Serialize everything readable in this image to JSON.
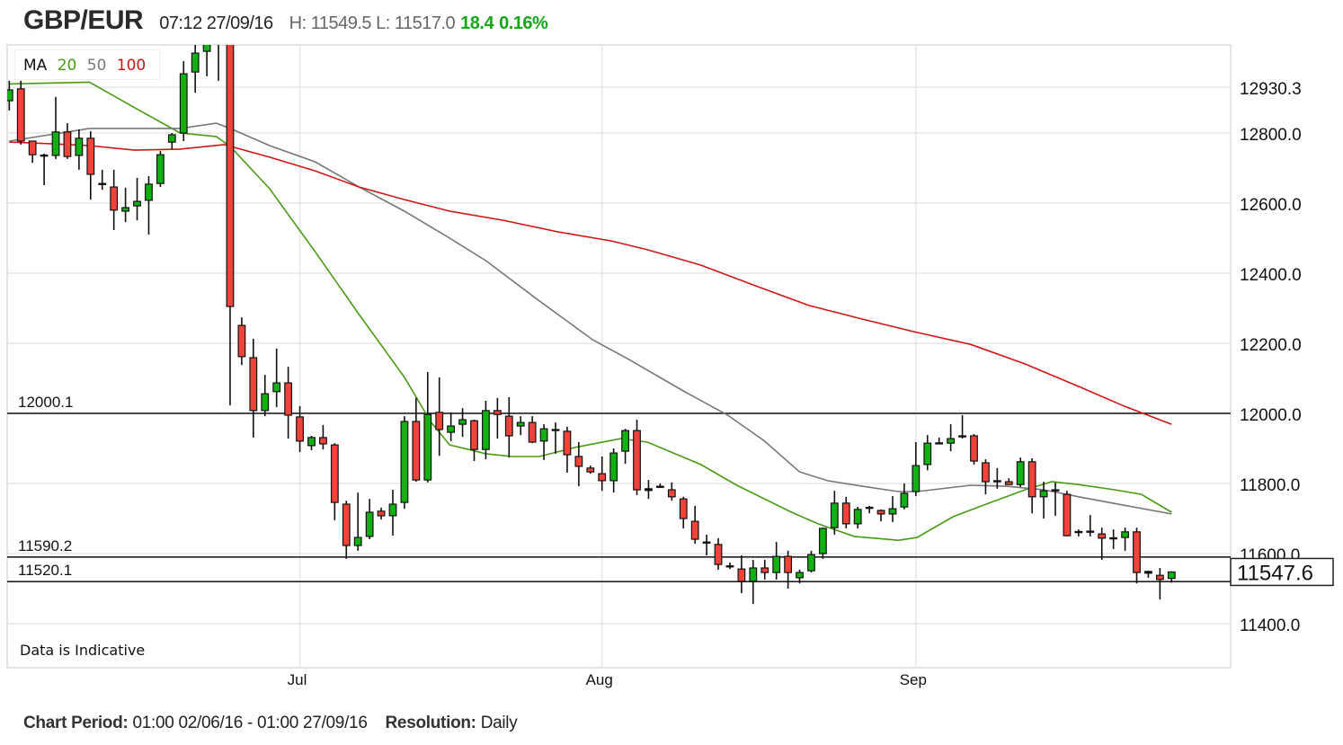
{
  "header": {
    "symbol": "GBP/EUR",
    "timestamp": "07:12 27/09/16",
    "high_low": "H: 11549.5 L: 11517.0",
    "change": "18.4",
    "change_pct": "0.16%"
  },
  "legend": {
    "label": "MA",
    "ma20": "20",
    "ma50": "50",
    "ma100": "100"
  },
  "notice": "Data is Indicative",
  "footer": {
    "period_label": "Chart Period:",
    "period_value": "01:00 02/06/16 - 01:00 27/09/16",
    "resolution_label": "Resolution:",
    "resolution_value": "Daily"
  },
  "colors": {
    "up": "#12b012",
    "down": "#f0443a",
    "ma20": "#4a9a14",
    "ma50": "#777777",
    "ma100": "#d01515",
    "header_change": "#17a51a"
  },
  "chart_data": {
    "type": "candlestick",
    "title": "GBP/EUR",
    "ylim": [
      11330,
      13052
    ],
    "y_ticks": [
      12930.3,
      12800.0,
      12600.0,
      12400.0,
      12200.0,
      12000.0,
      11800.0,
      11600.0,
      11400.0
    ],
    "y_tick_labels": [
      "12930.3",
      "12800.0",
      "12600.0",
      "12400.0",
      "12200.0",
      "12000.0",
      "11800.0",
      "11600.0",
      "11400.0"
    ],
    "x_ticks": [
      {
        "index": 25,
        "label": "Jul"
      },
      {
        "index": 51,
        "label": "Aug"
      },
      {
        "index": 78,
        "label": "Sep"
      }
    ],
    "grid": true,
    "current_price": 11547.6,
    "current_price_label": "11547.6",
    "levels": [
      {
        "value": 12000.1,
        "label": "12000.1"
      },
      {
        "value": 11590.2,
        "label": "11590.2"
      },
      {
        "value": 11520.1,
        "label": "11520.1"
      }
    ],
    "ohlc_fields": [
      "open",
      "high",
      "low",
      "close"
    ],
    "candles": [
      [
        12892,
        12949,
        12864,
        12923
      ],
      [
        12926,
        12949,
        12767,
        12777
      ],
      [
        12777,
        12777,
        12715,
        12738
      ],
      [
        12737,
        12741,
        12651,
        12736
      ],
      [
        12736,
        12903,
        12726,
        12803
      ],
      [
        12803,
        12828,
        12726,
        12733
      ],
      [
        12736,
        12810,
        12695,
        12785
      ],
      [
        12785,
        12805,
        12610,
        12682
      ],
      [
        12656,
        12695,
        12638,
        12654
      ],
      [
        12646,
        12695,
        12523,
        12580
      ],
      [
        12577,
        12644,
        12546,
        12587
      ],
      [
        12592,
        12672,
        12551,
        12605
      ],
      [
        12608,
        12677,
        12510,
        12654
      ],
      [
        12656,
        12749,
        12646,
        12738
      ],
      [
        12774,
        12800,
        12754,
        12795
      ],
      [
        12800,
        13005,
        12777,
        12969
      ],
      [
        12974,
        13060,
        12915,
        13028
      ],
      [
        13033,
        13090,
        12962,
        13070
      ],
      [
        13080,
        13120,
        12949,
        13072
      ],
      [
        13090,
        13130,
        12023,
        12305
      ],
      [
        12251,
        12274,
        12138,
        12162
      ],
      [
        12159,
        12213,
        11931,
        12008
      ],
      [
        12008,
        12110,
        11992,
        12056
      ],
      [
        12062,
        12185,
        12018,
        12087
      ],
      [
        12087,
        12133,
        11928,
        11995
      ],
      [
        11990,
        12021,
        11890,
        11921
      ],
      [
        11908,
        11936,
        11895,
        11931
      ],
      [
        11931,
        11967,
        11897,
        11913
      ],
      [
        11910,
        11915,
        11695,
        11746
      ],
      [
        11741,
        11751,
        11585,
        11623
      ],
      [
        11623,
        11774,
        11608,
        11646
      ],
      [
        11649,
        11756,
        11641,
        11718
      ],
      [
        11721,
        11731,
        11697,
        11708
      ],
      [
        11708,
        11782,
        11651,
        11741
      ],
      [
        11746,
        11992,
        11728,
        11977
      ],
      [
        11977,
        12044,
        11805,
        11810
      ],
      [
        11810,
        12118,
        11803,
        11997
      ],
      [
        12003,
        12103,
        11879,
        11954
      ],
      [
        11946,
        12003,
        11921,
        11964
      ],
      [
        11969,
        12015,
        11933,
        11982
      ],
      [
        11979,
        11982,
        11864,
        11897
      ],
      [
        11897,
        12036,
        11869,
        12008
      ],
      [
        12008,
        12044,
        11928,
        11997
      ],
      [
        11992,
        12046,
        11874,
        11936
      ],
      [
        11964,
        11992,
        11938,
        11974
      ],
      [
        11974,
        11992,
        11915,
        11918
      ],
      [
        11921,
        11969,
        11867,
        11956
      ],
      [
        11954,
        11974,
        11885,
        11951
      ],
      [
        11949,
        11962,
        11831,
        11882
      ],
      [
        11877,
        11918,
        11792,
        11849
      ],
      [
        11844,
        11851,
        11828,
        11833
      ],
      [
        11828,
        11877,
        11779,
        11808
      ],
      [
        11808,
        11900,
        11774,
        11887
      ],
      [
        11892,
        11956,
        11856,
        11951
      ],
      [
        11951,
        11982,
        11767,
        11782
      ],
      [
        11785,
        11810,
        11756,
        11780
      ],
      [
        11792,
        11800,
        11787,
        11790
      ],
      [
        11782,
        11803,
        11751,
        11762
      ],
      [
        11756,
        11762,
        11672,
        11700
      ],
      [
        11692,
        11736,
        11628,
        11641
      ],
      [
        11633,
        11654,
        11595,
        11631
      ],
      [
        11626,
        11644,
        11554,
        11569
      ],
      [
        11565,
        11574,
        11556,
        11564
      ],
      [
        11556,
        11595,
        11487,
        11521
      ],
      [
        11521,
        11582,
        11456,
        11559
      ],
      [
        11559,
        11582,
        11526,
        11546
      ],
      [
        11546,
        11633,
        11526,
        11592
      ],
      [
        11592,
        11608,
        11500,
        11546
      ],
      [
        11531,
        11554,
        11515,
        11546
      ],
      [
        11551,
        11608,
        11546,
        11597
      ],
      [
        11600,
        11674,
        11585,
        11672
      ],
      [
        11674,
        11779,
        11654,
        11744
      ],
      [
        11744,
        11762,
        11672,
        11685
      ],
      [
        11685,
        11733,
        11672,
        11726
      ],
      [
        11732,
        11736,
        11715,
        11731
      ],
      [
        11723,
        11726,
        11692,
        11713
      ],
      [
        11713,
        11764,
        11690,
        11728
      ],
      [
        11733,
        11800,
        11726,
        11772
      ],
      [
        11777,
        11918,
        11764,
        11851
      ],
      [
        11854,
        11938,
        11838,
        11915
      ],
      [
        11914,
        11931,
        11913,
        11916
      ],
      [
        11915,
        11969,
        11892,
        11928
      ],
      [
        11936,
        11995,
        11928,
        11933
      ],
      [
        11936,
        11941,
        11854,
        11864
      ],
      [
        11859,
        11869,
        11769,
        11805
      ],
      [
        11808,
        11844,
        11785,
        11805
      ],
      [
        11805,
        11815,
        11797,
        11797
      ],
      [
        11797,
        11874,
        11790,
        11862
      ],
      [
        11862,
        11872,
        11715,
        11762
      ],
      [
        11762,
        11805,
        11700,
        11779
      ],
      [
        11782,
        11803,
        11708,
        11779
      ],
      [
        11769,
        11779,
        11649,
        11651
      ],
      [
        11663,
        11669,
        11649,
        11662
      ],
      [
        11664,
        11710,
        11649,
        11662
      ],
      [
        11656,
        11674,
        11582,
        11644
      ],
      [
        11645,
        11669,
        11613,
        11644
      ],
      [
        11646,
        11674,
        11608,
        11662
      ],
      [
        11662,
        11674,
        11515,
        11546
      ],
      [
        11549,
        11551,
        11531,
        11544
      ],
      [
        11538,
        11559,
        11469,
        11526
      ],
      [
        11529.2,
        11549.5,
        11517.0,
        11547.6
      ]
    ],
    "moving_averages": [
      {
        "name": "MA 20",
        "period": 20,
        "points": [
          [
            0,
            12940
          ],
          [
            6.9,
            12945
          ],
          [
            10.8,
            12872
          ],
          [
            14.7,
            12800
          ],
          [
            17.8,
            12790
          ],
          [
            19,
            12762
          ],
          [
            22.4,
            12641
          ],
          [
            26.3,
            12462
          ],
          [
            30.1,
            12282
          ],
          [
            34,
            12103
          ],
          [
            36.3,
            11974
          ],
          [
            37.9,
            11910
          ],
          [
            41,
            11885
          ],
          [
            43.3,
            11877
          ],
          [
            45.6,
            11877
          ],
          [
            48.7,
            11903
          ],
          [
            52.6,
            11928
          ],
          [
            54.9,
            11918
          ],
          [
            59.5,
            11854
          ],
          [
            62.6,
            11795
          ],
          [
            67.3,
            11718
          ],
          [
            69.6,
            11685
          ],
          [
            72.7,
            11649
          ],
          [
            76.5,
            11638
          ],
          [
            78.1,
            11646
          ],
          [
            81.2,
            11705
          ],
          [
            84.3,
            11744
          ],
          [
            87.4,
            11782
          ],
          [
            89.7,
            11805
          ],
          [
            92,
            11797
          ],
          [
            95.1,
            11782
          ],
          [
            97.4,
            11769
          ],
          [
            100,
            11718
          ]
        ]
      },
      {
        "name": "MA 50",
        "period": 50,
        "points": [
          [
            0,
            12777
          ],
          [
            6.9,
            12813
          ],
          [
            14.7,
            12813
          ],
          [
            17.8,
            12828
          ],
          [
            19,
            12813
          ],
          [
            22.4,
            12764
          ],
          [
            26.3,
            12718
          ],
          [
            30.1,
            12646
          ],
          [
            34,
            12577
          ],
          [
            37.9,
            12500
          ],
          [
            41,
            12436
          ],
          [
            45.6,
            12321
          ],
          [
            50.2,
            12210
          ],
          [
            53.3,
            12154
          ],
          [
            58,
            12064
          ],
          [
            61.8,
            11995
          ],
          [
            64.9,
            11923
          ],
          [
            68,
            11833
          ],
          [
            70.4,
            11808
          ],
          [
            73.4,
            11792
          ],
          [
            76.5,
            11777
          ],
          [
            78.1,
            11777
          ],
          [
            82.7,
            11795
          ],
          [
            85.8,
            11792
          ],
          [
            89,
            11782
          ],
          [
            92,
            11762
          ],
          [
            95.9,
            11738
          ],
          [
            100,
            11713
          ]
        ]
      },
      {
        "name": "MA 100",
        "period": 100,
        "points": [
          [
            0,
            12774
          ],
          [
            3.8,
            12769
          ],
          [
            6.9,
            12764
          ],
          [
            10.8,
            12751
          ],
          [
            14.7,
            12754
          ],
          [
            18.5,
            12767
          ],
          [
            22.4,
            12731
          ],
          [
            26.3,
            12692
          ],
          [
            30.1,
            12646
          ],
          [
            34,
            12610
          ],
          [
            37.9,
            12577
          ],
          [
            42.5,
            12551
          ],
          [
            47.2,
            12518
          ],
          [
            51.8,
            12492
          ],
          [
            54.9,
            12467
          ],
          [
            59.5,
            12423
          ],
          [
            64.2,
            12364
          ],
          [
            68.8,
            12308
          ],
          [
            73.4,
            12269
          ],
          [
            78.1,
            12231
          ],
          [
            82.7,
            12197
          ],
          [
            87.4,
            12141
          ],
          [
            92,
            12077
          ],
          [
            95.9,
            12021
          ],
          [
            100,
            11969
          ]
        ]
      }
    ]
  }
}
